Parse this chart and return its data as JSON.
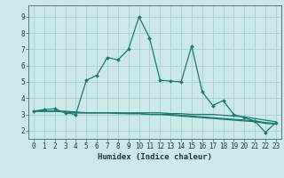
{
  "title": "",
  "xlabel": "Humidex (Indice chaleur)",
  "bg_color": "#cce9e9",
  "grid_color": "#aad4d4",
  "line_color": "#1a7a6e",
  "xlim": [
    -0.5,
    23.5
  ],
  "ylim": [
    1.5,
    9.7
  ],
  "yticks": [
    2,
    3,
    4,
    5,
    6,
    7,
    8,
    9
  ],
  "xticks": [
    0,
    1,
    2,
    3,
    4,
    5,
    6,
    7,
    8,
    9,
    10,
    11,
    12,
    13,
    14,
    15,
    16,
    17,
    18,
    19,
    20,
    21,
    22,
    23
  ],
  "line1_x": [
    0,
    1,
    2,
    3,
    4,
    5,
    6,
    7,
    8,
    9,
    10,
    11,
    12,
    13,
    14,
    15,
    16,
    17,
    18,
    19,
    20,
    21,
    22,
    23
  ],
  "line1_y": [
    3.2,
    3.3,
    3.35,
    3.1,
    3.0,
    5.1,
    5.4,
    6.5,
    6.35,
    7.0,
    9.0,
    7.7,
    5.1,
    5.05,
    5.0,
    7.2,
    4.4,
    3.55,
    3.85,
    3.0,
    2.8,
    2.6,
    1.9,
    2.5
  ],
  "line2_x": [
    0,
    1,
    2,
    3,
    4,
    5,
    6,
    7,
    8,
    9,
    10,
    11,
    12,
    13,
    14,
    15,
    16,
    17,
    18,
    19,
    20,
    21,
    22,
    23
  ],
  "line2_y": [
    3.2,
    3.2,
    3.2,
    3.15,
    3.1,
    3.1,
    3.1,
    3.1,
    3.1,
    3.1,
    3.1,
    3.1,
    3.1,
    3.05,
    3.05,
    3.0,
    3.0,
    3.0,
    2.95,
    2.9,
    2.85,
    2.75,
    2.65,
    2.55
  ],
  "line3_x": [
    0,
    1,
    2,
    3,
    4,
    5,
    6,
    7,
    8,
    9,
    10,
    11,
    12,
    13,
    14,
    15,
    16,
    17,
    18,
    19,
    20,
    21,
    22,
    23
  ],
  "line3_y": [
    3.2,
    3.2,
    3.2,
    3.15,
    3.1,
    3.1,
    3.1,
    3.1,
    3.05,
    3.05,
    3.05,
    3.0,
    3.0,
    3.0,
    2.95,
    2.9,
    2.85,
    2.8,
    2.75,
    2.7,
    2.65,
    2.6,
    2.5,
    2.45
  ],
  "line4_x": [
    0,
    1,
    2,
    3,
    4,
    5,
    6,
    7,
    8,
    9,
    10,
    11,
    12,
    13,
    14,
    15,
    16,
    17,
    18,
    19,
    20,
    21,
    22,
    23
  ],
  "line4_y": [
    3.2,
    3.2,
    3.2,
    3.2,
    3.15,
    3.1,
    3.1,
    3.1,
    3.1,
    3.05,
    3.05,
    3.0,
    3.0,
    2.95,
    2.9,
    2.85,
    2.8,
    2.75,
    2.7,
    2.65,
    2.6,
    2.55,
    2.45,
    2.4
  ],
  "tick_fontsize": 5.5,
  "xlabel_fontsize": 6.5
}
